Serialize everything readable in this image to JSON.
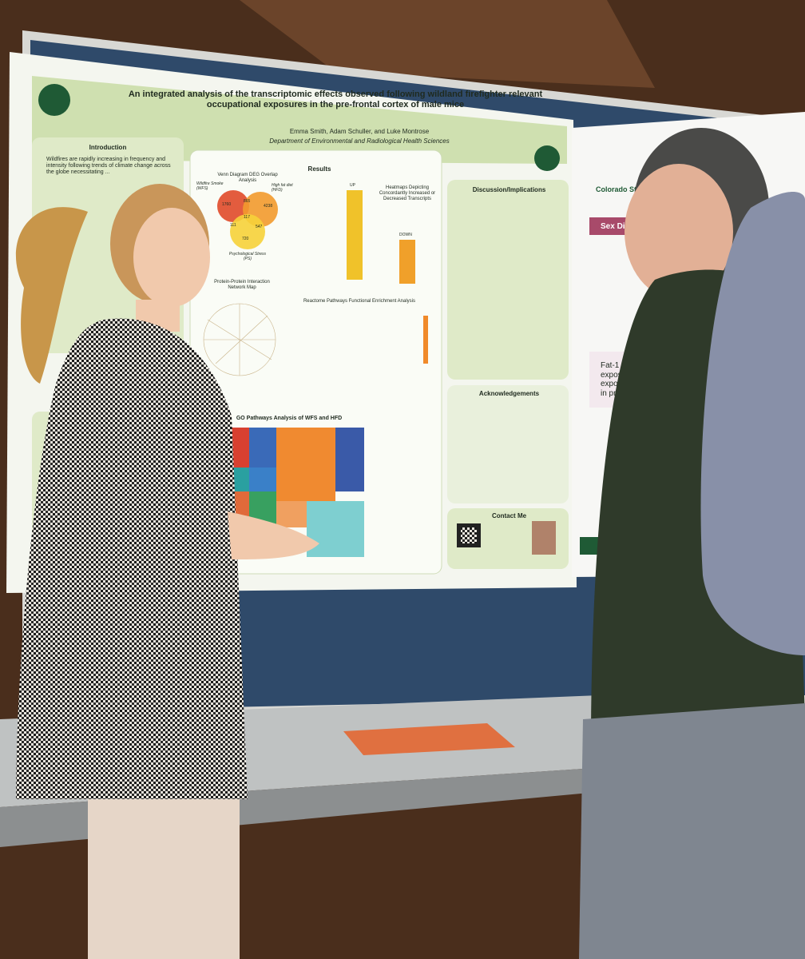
{
  "poster": {
    "title": "An integrated analysis of the transcriptomic effects observed following wildland firefighter relevant occupational exposures in the pre-frontal cortex of male mice",
    "authors": "Emma Smith, Adam Schuller, and Luke Montrose",
    "department": "Department of Environmental and Radiological Health Sciences",
    "introduction": {
      "heading": "Introduction",
      "text": "Wildfires are rapidly increasing in frequency and intensity following trends of climate change across the globe necessitating ..."
    },
    "results": {
      "heading": "Results",
      "venn_title": "Venn Diagram DEG Overlap Analysis",
      "venn_labels": [
        "Wildfire Smoke (WFS)",
        "High fat diet (HFD)",
        "Psychological Stress (PS)"
      ],
      "venn_counts": [
        "1760",
        "865",
        "4238",
        "117",
        "111",
        "547",
        "720"
      ],
      "heatmap_title": "Heatmaps Depicting Concordantly Increased or Decreased Transcripts",
      "heatmap_up": "UP",
      "heatmap_down": "DOWN",
      "network_title": "Protein-Protein Interaction Network Map",
      "reactome_title": "Reactome Pathways Functional Enrichment Analysis",
      "go_title": "GO Pathways Analysis of WFS and HFD"
    },
    "discussion": {
      "heading": "Discussion/Implications"
    },
    "acknowledgements": {
      "heading": "Acknowledgements"
    },
    "contact": {
      "heading": "Contact Me"
    }
  },
  "side_poster": {
    "institution": "Colorado State",
    "section": "Sex Differenc",
    "finding": "Fat-1 mice expos dust exposure w in pro-resolut"
  }
}
